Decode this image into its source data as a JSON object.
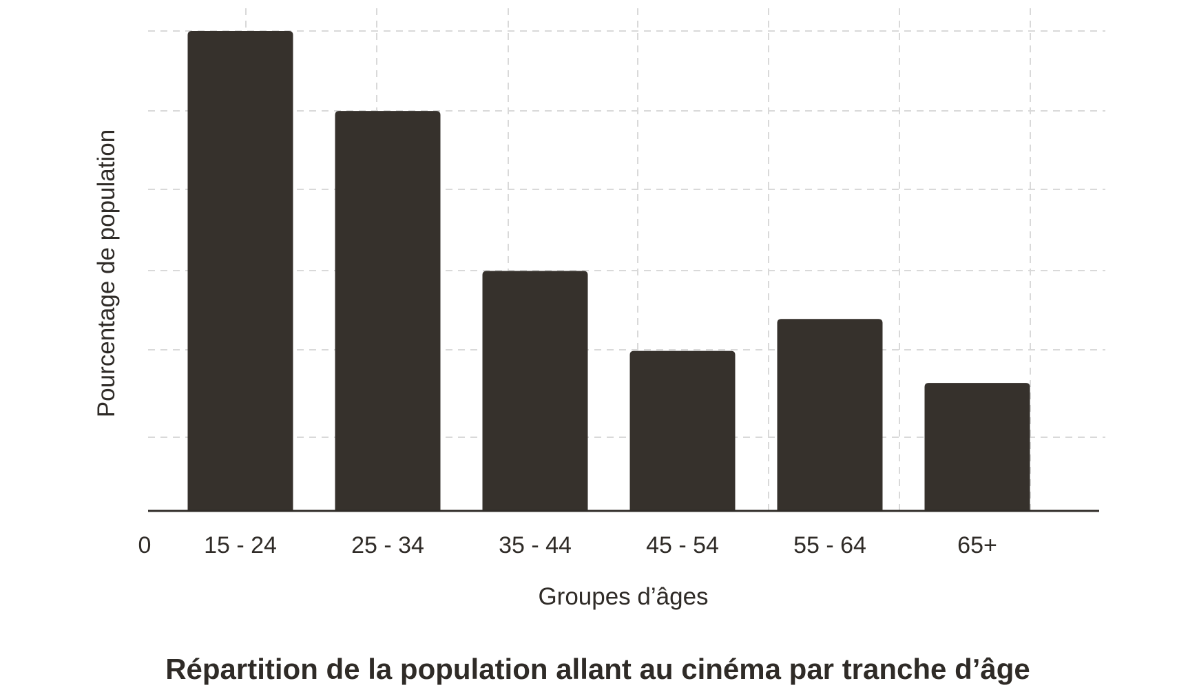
{
  "chart_data": {
    "type": "bar",
    "title": "Répartition de la population allant au cinéma par tranche d’âge",
    "xlabel": "Groupes d’âges",
    "ylabel": "Pourcentage de population",
    "origin_label": "0",
    "categories": [
      "15 - 24",
      "25 - 34",
      "35 - 44",
      "45 - 54",
      "55 - 64",
      "65+"
    ],
    "values": [
      30,
      25,
      15,
      10,
      12,
      8
    ],
    "ylim": [
      0,
      30
    ],
    "grid": true,
    "bar_color": "#36312c",
    "grid_color": "#d9d9d9"
  }
}
